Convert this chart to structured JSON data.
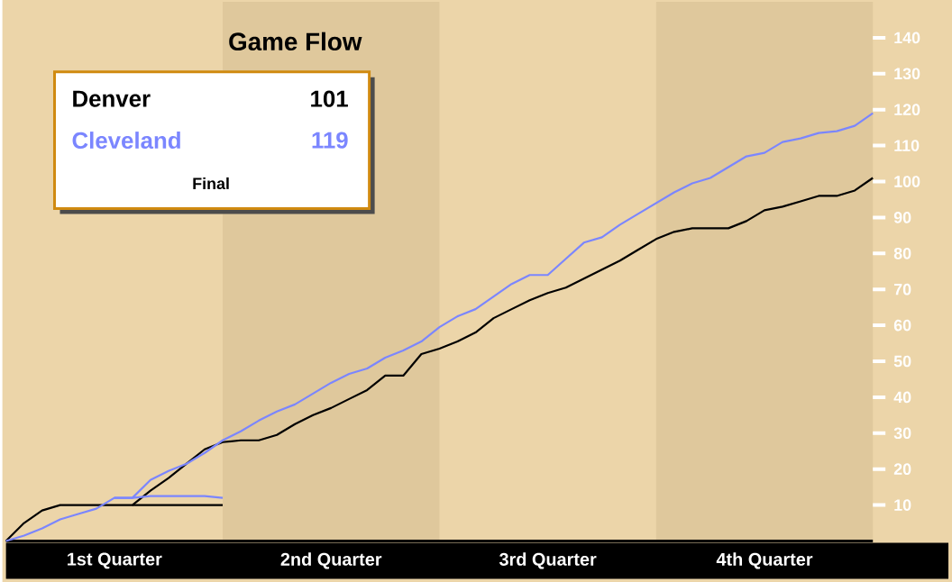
{
  "chart_data": {
    "type": "line",
    "title": "Game Flow",
    "categories": [
      null,
      null,
      null,
      null,
      null,
      null,
      null,
      null,
      null,
      null,
      null,
      null,
      null,
      null,
      null,
      null,
      null,
      null,
      null,
      null,
      null,
      null,
      null,
      null,
      null,
      null,
      null,
      null,
      null,
      null,
      null,
      null,
      null,
      null,
      null,
      null,
      null,
      null,
      null,
      null,
      null,
      null,
      null,
      null,
      null,
      null,
      null,
      null,
      null
    ],
    "ylim": [
      0,
      150
    ],
    "yticks": [
      10,
      20,
      30,
      40,
      50,
      60,
      70,
      80,
      90,
      100,
      110,
      120,
      130,
      140
    ],
    "legend": "top left",
    "marker": "none",
    "line_style": "solid",
    "annotations": [
      "101",
      "119",
      "Final",
      "1st Quarter",
      "2nd Quarter",
      "3rd Quarter",
      "4th Quarter"
    ],
    "series": [
      {
        "name": "Denver",
        "color": "#000000",
        "values": [
          0,
          5,
          8.5,
          10,
          10,
          10,
          10,
          10,
          14,
          17.5,
          21.5,
          25.5,
          27.5,
          28,
          28,
          29.5,
          32.5,
          35,
          37,
          39.5,
          42,
          46,
          46,
          52,
          53.5,
          55.5,
          58,
          62,
          64.5,
          67,
          69,
          70.5,
          73,
          75.5,
          78,
          81,
          84,
          86,
          87,
          87,
          87,
          89,
          92,
          93,
          94.5,
          96,
          96,
          97.5,
          101
        ]
      },
      {
        "name": "Cleveland",
        "color": "#7b86ff",
        "values": [
          0,
          1.5,
          3.5,
          6,
          7.5,
          9,
          12,
          12,
          17,
          19.5,
          21.5,
          24.5,
          28,
          30.5,
          33.5,
          36,
          38,
          41,
          44,
          46.5,
          48,
          51,
          53,
          55.5,
          59.5,
          62.5,
          64.5,
          68,
          71.5,
          74,
          74,
          78.5,
          83,
          84.5,
          88,
          91,
          94,
          97,
          99.5,
          101,
          104,
          107,
          108,
          111,
          112,
          113.5,
          114,
          115.5,
          119
        ]
      },
      {
        "color": "#000000",
        "values": [
          null,
          null,
          null,
          null,
          null,
          null,
          null,
          10,
          10,
          10,
          10,
          10,
          10,
          null,
          null,
          null,
          null,
          null,
          null,
          null,
          null,
          null,
          null,
          null,
          null,
          null,
          null,
          null,
          null,
          null,
          null,
          null,
          null,
          null,
          null,
          null,
          null,
          null,
          null,
          null,
          null,
          null,
          null,
          null,
          null,
          null,
          null,
          null,
          null
        ]
      },
      {
        "color": "#7b86ff",
        "values": [
          null,
          null,
          null,
          null,
          null,
          null,
          12,
          12,
          12.5,
          12.5,
          12.5,
          12.5,
          12,
          null,
          null,
          null,
          null,
          null,
          null,
          null,
          null,
          null,
          null,
          null,
          null,
          null,
          null,
          null,
          null,
          null,
          null,
          null,
          null,
          null,
          null,
          null,
          null,
          null,
          null,
          null,
          null,
          null,
          null,
          null,
          null,
          null,
          null,
          null,
          null
        ]
      }
    ]
  }
}
